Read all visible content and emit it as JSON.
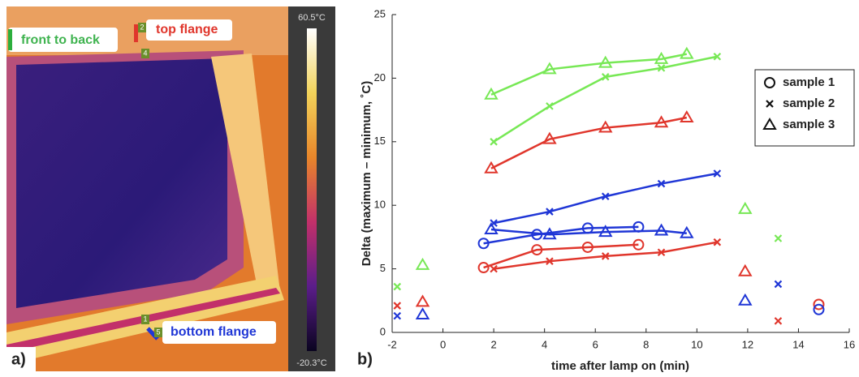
{
  "image_panel": {
    "panel_label": "a)",
    "labels": {
      "front_to_back": "front to back",
      "top_flange": "top flange",
      "bottom_flange": "bottom flange"
    },
    "markers": [
      "2",
      "4",
      "1",
      "5"
    ],
    "colorbar": {
      "max_label": "60.5°C",
      "min_label": "-20.3°C"
    }
  },
  "chart_data": {
    "type": "line",
    "panel_label": "b)",
    "x_label": "time after lamp on (min)",
    "y_label": "Delta (maximum – minimum, ˚C)",
    "xlim": [
      -2,
      16
    ],
    "xticks": [
      -2,
      0,
      2,
      4,
      6,
      8,
      10,
      12,
      14,
      16
    ],
    "ylim": [
      0,
      25
    ],
    "yticks": [
      0,
      5,
      10,
      15,
      20,
      25
    ],
    "legend": {
      "position": "upper right",
      "entries": [
        {
          "label": "sample 1",
          "marker": "circle"
        },
        {
          "label": "sample 2",
          "marker": "x"
        },
        {
          "label": "sample 3",
          "marker": "triangle"
        }
      ]
    },
    "series": [
      {
        "color": "#77e855",
        "marker": "triangle",
        "x": [
          1.9,
          4.2,
          6.4,
          8.6,
          9.6,
          null,
          -0.8,
          null,
          11.9
        ],
        "values": [
          18.7,
          20.7,
          21.2,
          21.5,
          21.9,
          null,
          5.3,
          null,
          9.7
        ]
      },
      {
        "color": "#77e855",
        "marker": "x",
        "x": [
          2,
          4.2,
          6.4,
          8.6,
          10.8,
          null,
          -1.8,
          null,
          13.2
        ],
        "values": [
          15.0,
          17.8,
          20.1,
          20.8,
          21.7,
          null,
          3.6,
          null,
          7.4
        ]
      },
      {
        "color": "#e0362c",
        "marker": "triangle",
        "x": [
          1.9,
          4.2,
          6.4,
          8.6,
          9.6,
          null,
          -0.8,
          null,
          11.9
        ],
        "values": [
          12.9,
          15.2,
          16.1,
          16.5,
          16.9,
          null,
          2.4,
          null,
          4.8
        ]
      },
      {
        "color": "#e0362c",
        "marker": "x",
        "x": [
          2,
          4.2,
          6.4,
          8.6,
          10.8,
          null,
          -1.8,
          null,
          13.2
        ],
        "values": [
          5.0,
          5.6,
          6.0,
          6.3,
          7.1,
          null,
          2.1,
          null,
          0.9
        ]
      },
      {
        "color": "#e0362c",
        "marker": "circle",
        "x": [
          1.6,
          3.7,
          5.7,
          7.7,
          null,
          14.8
        ],
        "values": [
          5.1,
          6.5,
          6.7,
          6.9,
          null,
          2.2
        ]
      },
      {
        "color": "#1f36d6",
        "marker": "x",
        "x": [
          2,
          4.2,
          6.4,
          8.6,
          10.8,
          null,
          -1.8,
          null,
          13.2
        ],
        "values": [
          8.6,
          9.5,
          10.7,
          11.7,
          12.5,
          null,
          1.3,
          null,
          3.8
        ]
      },
      {
        "color": "#1f36d6",
        "marker": "circle",
        "x": [
          1.6,
          3.7,
          5.7,
          7.7,
          null,
          14.8
        ],
        "values": [
          7.0,
          7.7,
          8.2,
          8.3,
          null,
          1.8
        ]
      },
      {
        "color": "#1f36d6",
        "marker": "triangle",
        "x": [
          1.9,
          4.2,
          6.4,
          8.6,
          9.6,
          null,
          -0.8,
          null,
          11.9
        ],
        "values": [
          8.1,
          7.7,
          7.9,
          8.0,
          7.8,
          null,
          1.4,
          null,
          2.5
        ]
      }
    ]
  }
}
